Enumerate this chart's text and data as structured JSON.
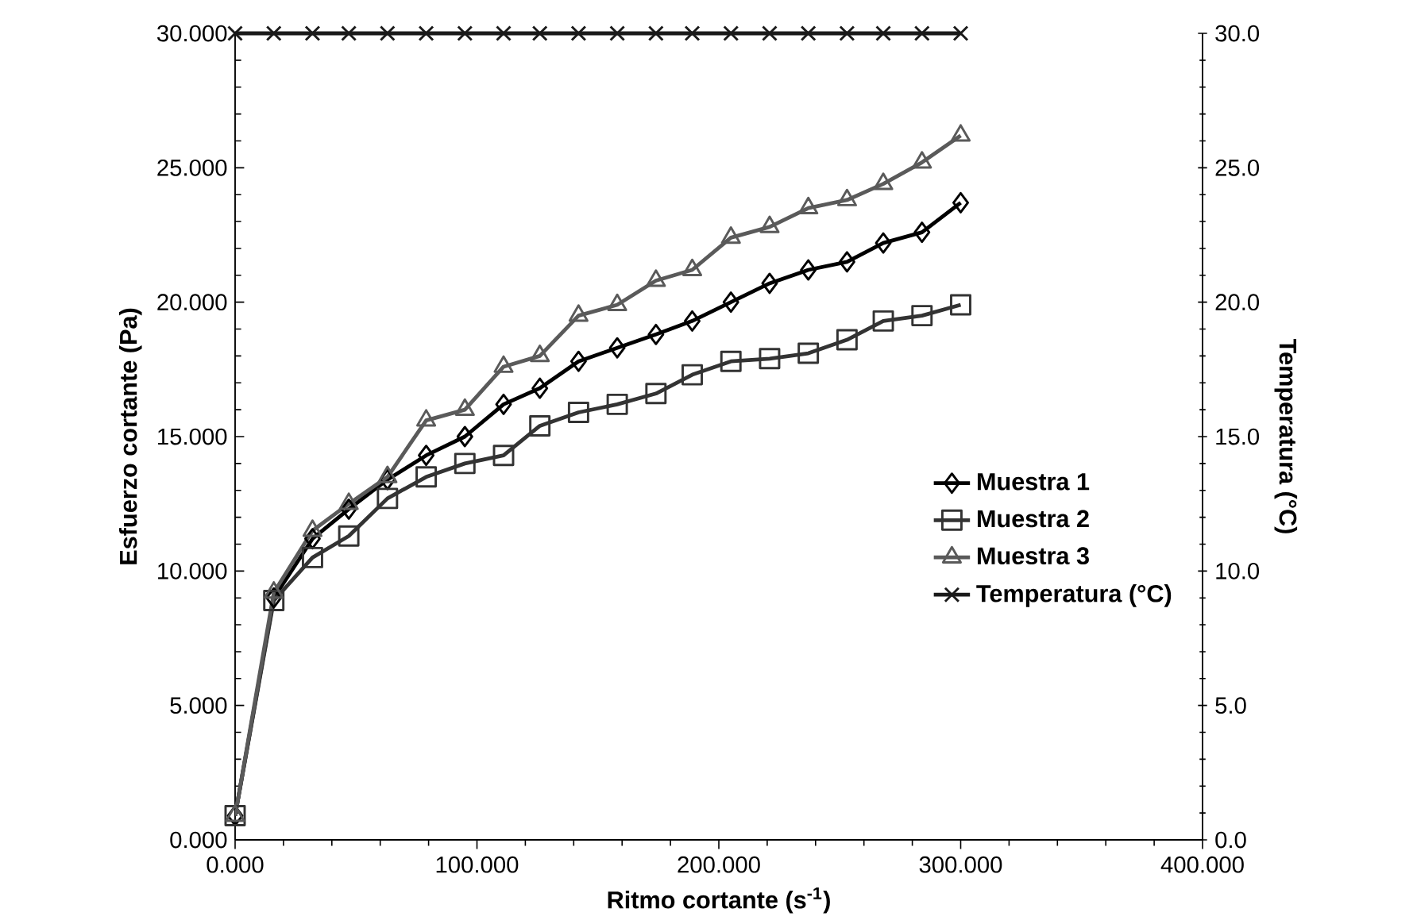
{
  "chart_data": {
    "type": "line",
    "xlabel": "Ritmo cortante (s$^{-1}$)",
    "ylabel": "Esfuerzo cortante (Pa)",
    "y2label": "Temperatura (°C)",
    "x": [
      0,
      16,
      32,
      47,
      63,
      79,
      95,
      111,
      126,
      142,
      158,
      174,
      189,
      205,
      221,
      237,
      253,
      268,
      284,
      300
    ],
    "series": [
      {
        "name": "Muestra 1",
        "color": "#000000",
        "marker": "diamond",
        "values": [
          0.9,
          9.0,
          11.2,
          12.3,
          13.4,
          14.3,
          15.0,
          16.2,
          16.8,
          17.8,
          18.3,
          18.8,
          19.3,
          20.0,
          20.7,
          21.2,
          21.5,
          22.2,
          22.6,
          23.7
        ]
      },
      {
        "name": "Muestra 2",
        "color": "#333333",
        "marker": "square",
        "values": [
          0.9,
          8.9,
          10.5,
          11.3,
          12.7,
          13.5,
          14.0,
          14.3,
          15.4,
          15.9,
          16.2,
          16.6,
          17.3,
          17.8,
          17.9,
          18.1,
          18.6,
          19.3,
          19.5,
          19.9
        ]
      },
      {
        "name": "Muestra 3",
        "color": "#5a5a5a",
        "marker": "triangle",
        "values": [
          0.9,
          9.2,
          11.5,
          12.5,
          13.5,
          15.6,
          16.0,
          17.6,
          18.0,
          19.5,
          19.9,
          20.8,
          21.2,
          22.4,
          22.8,
          23.5,
          23.8,
          24.4,
          25.2,
          26.2
        ]
      },
      {
        "name": "Temperatura (°C)",
        "color": "#1a1a1a",
        "marker": "cross",
        "axis": "y2",
        "values": [
          30.0,
          30.0,
          30.0,
          30.0,
          30.0,
          30.0,
          30.0,
          30.0,
          30.0,
          30.0,
          30.0,
          30.0,
          30.0,
          30.0,
          30.0,
          30.0,
          30.0,
          30.0,
          30.0,
          30.0
        ]
      }
    ],
    "xlim": [
      0,
      400
    ],
    "xticks": [
      {
        "value": 0,
        "label": "0.000"
      },
      {
        "value": 100,
        "label": "100.000"
      },
      {
        "value": 200,
        "label": "200.000"
      },
      {
        "value": 300,
        "label": "300.000"
      },
      {
        "value": 400,
        "label": "400.000"
      }
    ],
    "ylim": [
      0,
      30
    ],
    "yticks": [
      {
        "value": 0,
        "label": "0.000"
      },
      {
        "value": 5,
        "label": "5.000"
      },
      {
        "value": 10,
        "label": "10.000"
      },
      {
        "value": 15,
        "label": "15.000"
      },
      {
        "value": 20,
        "label": "20.000"
      },
      {
        "value": 25,
        "label": "25.000"
      },
      {
        "value": 30,
        "label": "30.000"
      }
    ],
    "y2lim": [
      0,
      30
    ],
    "y2ticks": [
      {
        "value": 0,
        "label": "0.0"
      },
      {
        "value": 5,
        "label": "5.0"
      },
      {
        "value": 10,
        "label": "10.0"
      },
      {
        "value": 15,
        "label": "15.0"
      },
      {
        "value": 20,
        "label": "20.0"
      },
      {
        "value": 25,
        "label": "25.0"
      },
      {
        "value": 30,
        "label": "30.0"
      }
    ],
    "grid": false,
    "legend": "right",
    "line_style": "solid"
  }
}
